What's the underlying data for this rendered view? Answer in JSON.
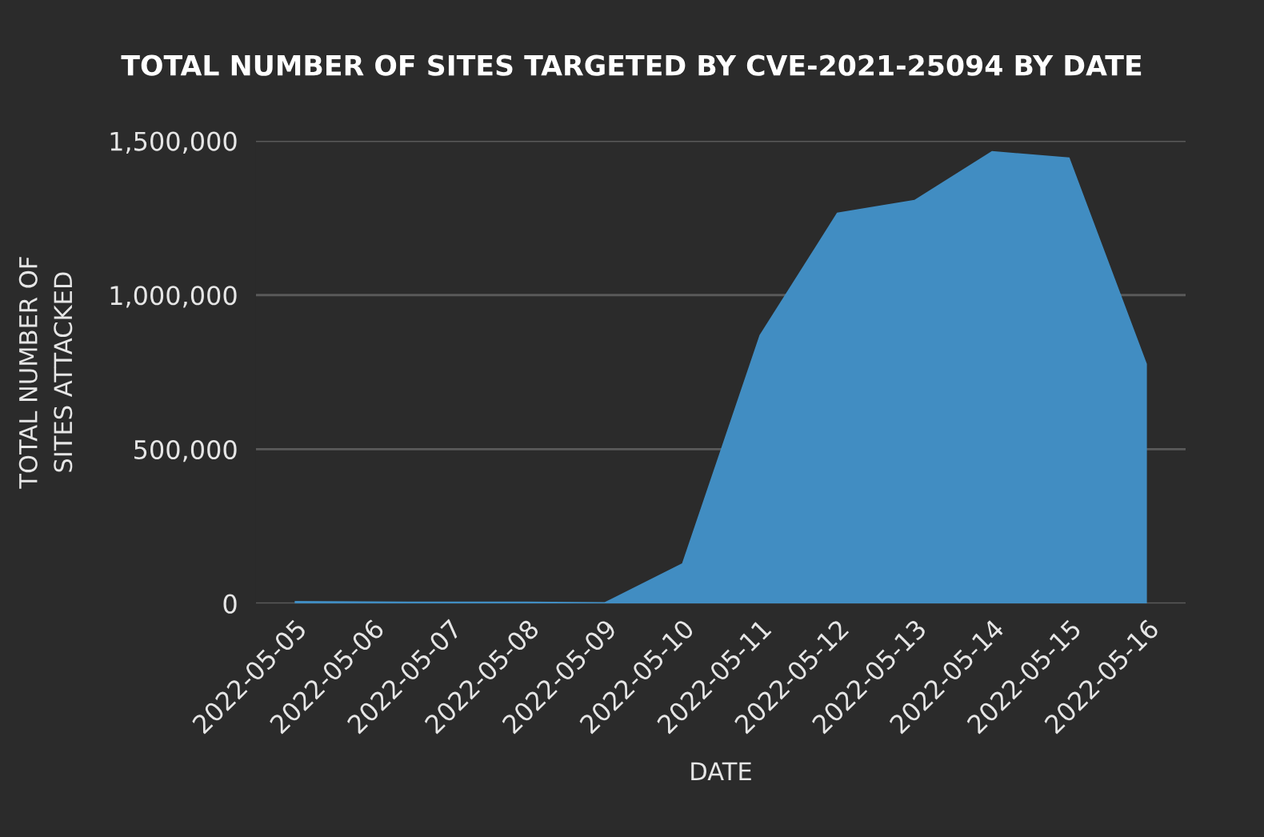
{
  "chart_data": {
    "type": "area",
    "title": "TOTAL NUMBER OF SITES TARGETED BY CVE-2021-25094 BY DATE",
    "xlabel": "DATE",
    "ylabel": "TOTAL NUMBER OF SITES ATTACKED",
    "categories": [
      "2022-05-05",
      "2022-05-06",
      "2022-05-07",
      "2022-05-08",
      "2022-05-09",
      "2022-05-10",
      "2022-05-11",
      "2022-05-12",
      "2022-05-13",
      "2022-05-14",
      "2022-05-15",
      "2022-05-16"
    ],
    "series": [
      {
        "color": "#418dc2",
        "values": [
          8000,
          7000,
          6000,
          6000,
          4000,
          130000,
          870000,
          1267000,
          1309000,
          1467000,
          1446000,
          777000
        ]
      }
    ],
    "ylim": [
      0,
      1500000
    ],
    "yticks": [
      {
        "value": 0,
        "label": "0"
      },
      {
        "value": 500000,
        "label": "500,000"
      },
      {
        "value": 1000000,
        "label": "1,000,000"
      },
      {
        "value": 1500000,
        "label": "1,500,000"
      }
    ],
    "grid": "y"
  }
}
